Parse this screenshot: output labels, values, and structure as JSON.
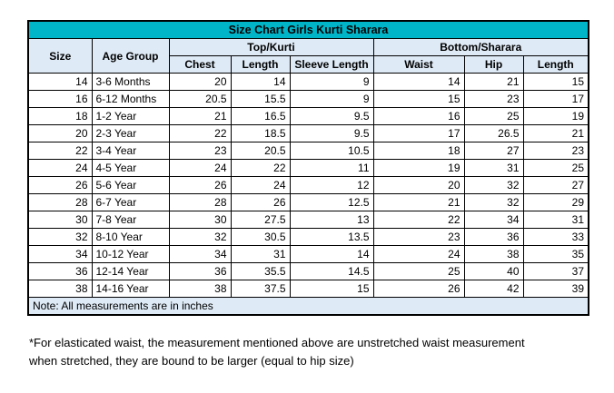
{
  "page": {
    "title": "Size Chart Girls Kurti Sharara",
    "note": "Note: All measurements are in inches",
    "footnote_line1": "*For elasticated waist, the measurement mentioned above are unstretched waist measurement",
    "footnote_line2": "when stretched, they are bound to be larger (equal to hip size)"
  },
  "colors": {
    "title_bg": "#00b5c8",
    "header_bg": "#deeaf6",
    "border": "#000000"
  },
  "table": {
    "col_headers": {
      "size": "Size",
      "age_group": "Age Group",
      "top_group": "Top/Kurti",
      "bottom_group": "Bottom/Sharara",
      "chest": "Chest",
      "top_length": "Length",
      "sleeve_length": "Sleeve Length",
      "waist": "Waist",
      "hip": "Hip",
      "bottom_length": "Length"
    },
    "column_keys": [
      "size",
      "age-group",
      "chest",
      "top-length",
      "sleeve-length",
      "waist",
      "hip",
      "bottom-length"
    ],
    "rows": [
      [
        "14",
        "3-6 Months",
        "20",
        "14",
        "9",
        "14",
        "21",
        "15"
      ],
      [
        "16",
        "6-12 Months",
        "20.5",
        "15.5",
        "9",
        "15",
        "23",
        "17"
      ],
      [
        "18",
        "1-2 Year",
        "21",
        "16.5",
        "9.5",
        "16",
        "25",
        "19"
      ],
      [
        "20",
        "2-3 Year",
        "22",
        "18.5",
        "9.5",
        "17",
        "26.5",
        "21"
      ],
      [
        "22",
        "3-4 Year",
        "23",
        "20.5",
        "10.5",
        "18",
        "27",
        "23"
      ],
      [
        "24",
        "4-5 Year",
        "24",
        "22",
        "11",
        "19",
        "31",
        "25"
      ],
      [
        "26",
        "5-6 Year",
        "26",
        "24",
        "12",
        "20",
        "32",
        "27"
      ],
      [
        "28",
        "6-7 Year",
        "28",
        "26",
        "12.5",
        "21",
        "32",
        "29"
      ],
      [
        "30",
        "7-8 Year",
        "30",
        "27.5",
        "13",
        "22",
        "34",
        "31"
      ],
      [
        "32",
        "8-10 Year",
        "32",
        "30.5",
        "13.5",
        "23",
        "36",
        "33"
      ],
      [
        "34",
        "10-12 Year",
        "34",
        "31",
        "14",
        "24",
        "38",
        "35"
      ],
      [
        "36",
        "12-14 Year",
        "36",
        "35.5",
        "14.5",
        "25",
        "40",
        "37"
      ],
      [
        "38",
        "14-16 Year",
        "38",
        "37.5",
        "15",
        "26",
        "42",
        "39"
      ]
    ]
  }
}
